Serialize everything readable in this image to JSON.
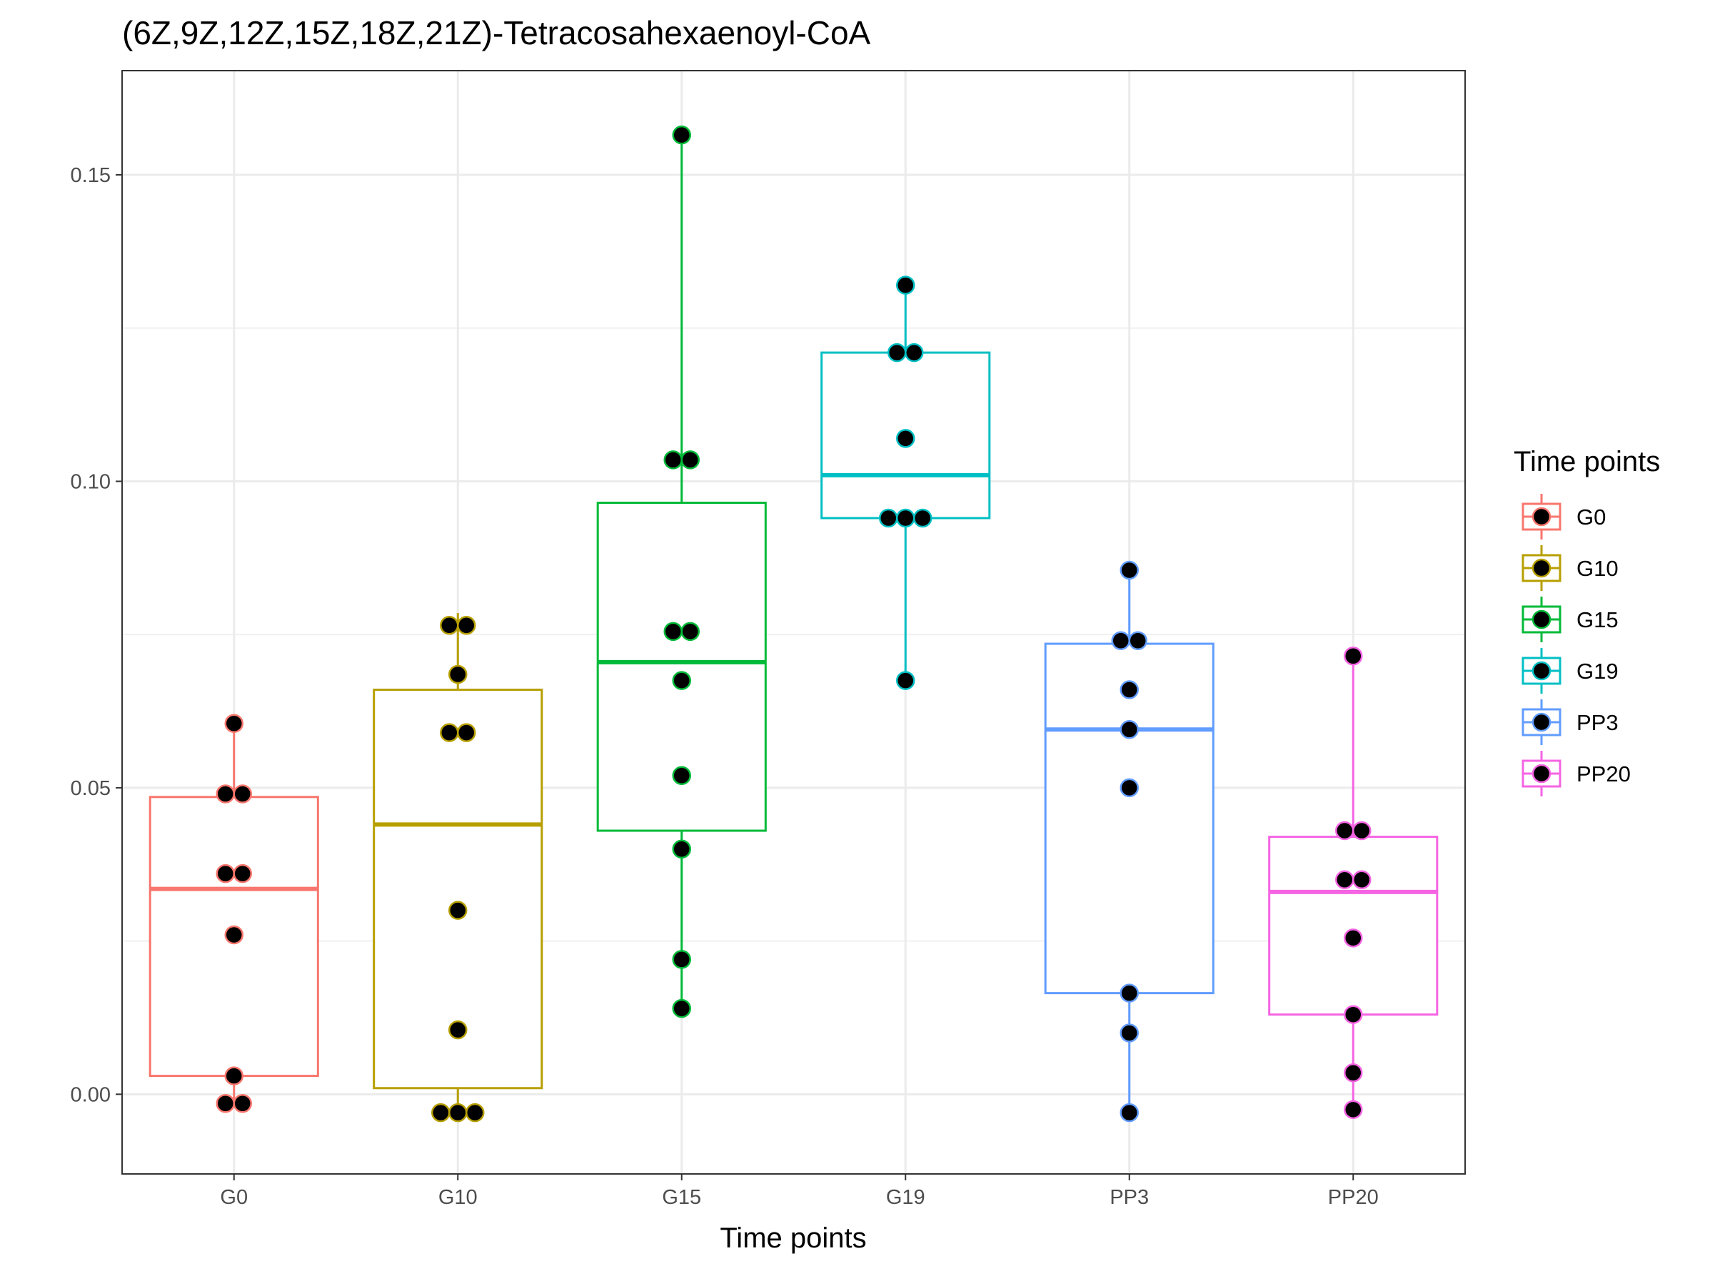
{
  "chart_data": {
    "type": "box",
    "title": "(6Z,9Z,12Z,15Z,18Z,21Z)-Tetracosahexaenoyl-CoA",
    "xlabel": "Time points",
    "ylabel": "",
    "ylim": [
      -0.013,
      0.167
    ],
    "yticks": [
      0.0,
      0.05,
      0.1,
      0.15
    ],
    "ytick_labels": [
      "0.00",
      "0.05",
      "0.10",
      "0.15"
    ],
    "grid": true,
    "legend": {
      "title": "Time points",
      "placement": "right"
    },
    "categories": [
      "G0",
      "G10",
      "G15",
      "G19",
      "PP3",
      "PP20"
    ],
    "series": [
      {
        "name": "G0",
        "color": "#F8766D",
        "box": {
          "q1": 0.003,
          "median": 0.0335,
          "q3": 0.0485,
          "whisker_low": -0.0015,
          "whisker_high": 0.0605
        },
        "points": [
          0.0605,
          0.049,
          0.049,
          0.036,
          0.036,
          0.026,
          0.003,
          -0.0015,
          -0.0015
        ]
      },
      {
        "name": "G10",
        "color": "#B79F00",
        "box": {
          "q1": 0.001,
          "median": 0.044,
          "q3": 0.066,
          "whisker_low": -0.003,
          "whisker_high": 0.0785
        },
        "points": [
          0.0765,
          0.0765,
          0.0685,
          0.059,
          0.059,
          0.03,
          0.0105,
          -0.003,
          -0.003,
          -0.003
        ]
      },
      {
        "name": "G15",
        "color": "#00BA38",
        "box": {
          "q1": 0.043,
          "median": 0.0705,
          "q3": 0.0965,
          "whisker_low": 0.0135,
          "whisker_high": 0.1565
        },
        "points": [
          0.1565,
          0.1035,
          0.1035,
          0.0755,
          0.0755,
          0.0675,
          0.052,
          0.04,
          0.022,
          0.014
        ]
      },
      {
        "name": "G19",
        "color": "#00BFC4",
        "box": {
          "q1": 0.094,
          "median": 0.101,
          "q3": 0.121,
          "whisker_low": 0.0675,
          "whisker_high": 0.132
        },
        "points": [
          0.132,
          0.121,
          0.121,
          0.107,
          0.094,
          0.094,
          0.094,
          0.0675
        ]
      },
      {
        "name": "PP3",
        "color": "#619CFF",
        "box": {
          "q1": 0.0165,
          "median": 0.0595,
          "q3": 0.0735,
          "whisker_low": -0.003,
          "whisker_high": 0.0855
        },
        "points": [
          0.0855,
          0.074,
          0.074,
          0.066,
          0.0595,
          0.05,
          0.0165,
          0.01,
          -0.003
        ]
      },
      {
        "name": "PP20",
        "color": "#F564E3",
        "box": {
          "q1": 0.013,
          "median": 0.033,
          "q3": 0.042,
          "whisker_low": -0.0025,
          "whisker_high": 0.0715
        },
        "points": [
          0.0715,
          0.043,
          0.043,
          0.035,
          0.035,
          0.0255,
          0.013,
          0.0035,
          -0.0025
        ]
      }
    ]
  }
}
